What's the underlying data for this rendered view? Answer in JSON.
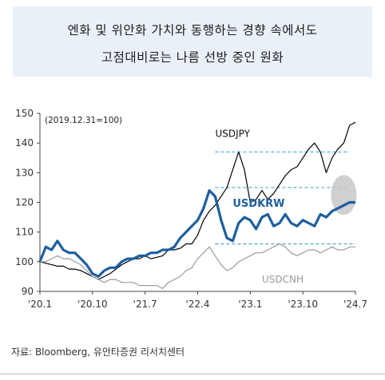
{
  "title_lines": [
    "엔화 및 위안화 가치와 동행하는 경향 속에서도",
    "고점대비로는 나름 선방 중인 원화"
  ],
  "source": "자료: Bloomberg, 유안타증권 리서치센터",
  "chart_data": {
    "type": "line",
    "index_note": "(2019.12.31=100)",
    "x_ticks": [
      "'20.1",
      "'20.10",
      "'21.7",
      "'22.4",
      "'23.1",
      "'23.10",
      "'24.7"
    ],
    "ylim": [
      90,
      150
    ],
    "y_ticks": [
      90,
      100,
      110,
      120,
      130,
      140,
      150
    ],
    "grid": false,
    "x_months": [
      0,
      1,
      2,
      3,
      4,
      5,
      6,
      7,
      8,
      9,
      10,
      11,
      12,
      13,
      14,
      15,
      16,
      17,
      18,
      19,
      20,
      21,
      22,
      23,
      24,
      25,
      26,
      27,
      28,
      29,
      30,
      31,
      32,
      33,
      34,
      35,
      36,
      37,
      38,
      39,
      40,
      41,
      42,
      43,
      44,
      45,
      46,
      47,
      48,
      49,
      50,
      51,
      52,
      53,
      54
    ],
    "series": [
      {
        "name": "USDJPY",
        "color": "#000000",
        "values": [
          100,
          99.5,
          99,
          98.5,
          98.5,
          97.5,
          97.5,
          97,
          96,
          95,
          94,
          95,
          96,
          97.5,
          99,
          100,
          101,
          101,
          102,
          101,
          101.5,
          102,
          104,
          104,
          104.5,
          106,
          106,
          109,
          114,
          117,
          119,
          122,
          125,
          131,
          137,
          131,
          120,
          121,
          124,
          121,
          123,
          126,
          129,
          131,
          132,
          135,
          138,
          140,
          137,
          130,
          135,
          138,
          140,
          146,
          147
        ]
      },
      {
        "name": "USDKRW",
        "color": "#1c5f9f",
        "values": [
          100,
          105,
          104,
          107,
          104,
          103,
          103,
          101,
          99,
          96,
          95,
          97,
          98,
          98,
          100,
          101,
          101,
          102,
          102,
          103,
          103,
          104,
          104,
          105,
          108,
          110,
          112,
          114,
          118,
          124,
          122,
          114,
          108,
          107,
          113,
          115,
          114,
          111,
          115,
          116,
          112,
          113,
          116,
          113,
          112,
          114,
          113,
          112,
          116,
          115,
          117,
          118,
          119,
          120,
          120
        ]
      },
      {
        "name": "USDCNH",
        "color": "#9a9a9a",
        "values": [
          100,
          100,
          101,
          102,
          101,
          101,
          100,
          99,
          97,
          95,
          94,
          93,
          94,
          94,
          93,
          93,
          93,
          92,
          92,
          92,
          92,
          91,
          93,
          94,
          95,
          97,
          98,
          101,
          103,
          105,
          102,
          99,
          97,
          98,
          100,
          101,
          102,
          103,
          103,
          104,
          105,
          106,
          105,
          103,
          102,
          103,
          104,
          104,
          103,
          104,
          105,
          104,
          104,
          105,
          105
        ]
      }
    ],
    "reference_lines": [
      137,
      125,
      106
    ],
    "labels": {
      "USDJPY": "USDJPY",
      "USDKRW": "USDKRW",
      "USDCNH": "USDCNH"
    }
  }
}
